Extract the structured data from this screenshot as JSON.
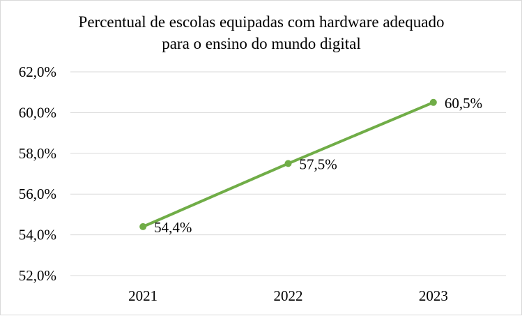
{
  "chart_data": {
    "type": "line",
    "title_lines": [
      "Percentual de escolas equipadas com hardware adequado",
      "para o ensino do mundo digital"
    ],
    "categories": [
      "2021",
      "2022",
      "2023"
    ],
    "series": [
      {
        "values": [
          54.4,
          57.5,
          60.5
        ],
        "labels": [
          "54,4%",
          "57,5%",
          "60,5%"
        ]
      }
    ],
    "ylim": [
      52,
      62
    ],
    "yticks": [
      52,
      54,
      56,
      58,
      60,
      62
    ],
    "ytick_labels": [
      "52,0%",
      "54,0%",
      "56,0%",
      "58,0%",
      "60,0%",
      "62,0%"
    ],
    "grid": true,
    "line_color": "#70ad47",
    "xlabel": "",
    "ylabel": ""
  }
}
